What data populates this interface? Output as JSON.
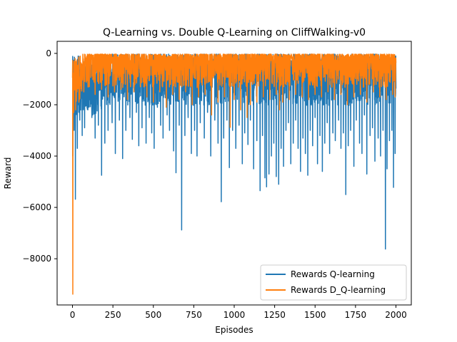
{
  "chart_data": {
    "type": "line",
    "title": "Q-Learning vs. Double Q-Learning on CliffWalking-v0",
    "xlabel": "Episodes",
    "ylabel": "Reward",
    "xlim": [
      -95,
      2095
    ],
    "ylim": [
      -9800,
      470
    ],
    "xticks": [
      0,
      250,
      500,
      750,
      1000,
      1250,
      1500,
      1750,
      2000
    ],
    "yticks": [
      0,
      -2000,
      -4000,
      -6000,
      -8000
    ],
    "grid": false,
    "legend": "lower-right",
    "series": [
      {
        "name": "Rewards Q-learning",
        "color": "#1f77b4",
        "spikes": [
          [
            2,
            -4000
          ],
          [
            10,
            -3000
          ],
          [
            18,
            -5680
          ],
          [
            30,
            -3700
          ],
          [
            45,
            -2600
          ],
          [
            60,
            -3200
          ],
          [
            75,
            -2900
          ],
          [
            95,
            -2200
          ],
          [
            120,
            -2500
          ],
          [
            140,
            -3300
          ],
          [
            160,
            -2800
          ],
          [
            180,
            -4750
          ],
          [
            200,
            -3500
          ],
          [
            220,
            -3000
          ],
          [
            245,
            -2700
          ],
          [
            265,
            -3900
          ],
          [
            290,
            -2600
          ],
          [
            310,
            -4100
          ],
          [
            330,
            -3000
          ],
          [
            355,
            -2500
          ],
          [
            370,
            -3350
          ],
          [
            395,
            -2300
          ],
          [
            410,
            -3600
          ],
          [
            430,
            -2900
          ],
          [
            455,
            -3500
          ],
          [
            475,
            -2500
          ],
          [
            490,
            -3100
          ],
          [
            505,
            -3700
          ],
          [
            525,
            -2100
          ],
          [
            545,
            -2800
          ],
          [
            560,
            -3300
          ],
          [
            585,
            -2400
          ],
          [
            600,
            -3000
          ],
          [
            625,
            -3800
          ],
          [
            640,
            -4650
          ],
          [
            660,
            -2800
          ],
          [
            675,
            -6880
          ],
          [
            695,
            -3200
          ],
          [
            715,
            -2500
          ],
          [
            735,
            -3900
          ],
          [
            755,
            -3000
          ],
          [
            770,
            -4000
          ],
          [
            790,
            -2700
          ],
          [
            815,
            -3300
          ],
          [
            835,
            -2300
          ],
          [
            855,
            -4000
          ],
          [
            880,
            -2600
          ],
          [
            900,
            -3500
          ],
          [
            920,
            -5780
          ],
          [
            935,
            -3300
          ],
          [
            955,
            -2600
          ],
          [
            970,
            -4450
          ],
          [
            990,
            -3000
          ],
          [
            1010,
            -3700
          ],
          [
            1030,
            -2800
          ],
          [
            1050,
            -4300
          ],
          [
            1065,
            -3100
          ],
          [
            1085,
            -3550
          ],
          [
            1100,
            -2600
          ],
          [
            1120,
            -4500
          ],
          [
            1140,
            -3400
          ],
          [
            1160,
            -5350
          ],
          [
            1175,
            -3200
          ],
          [
            1190,
            -4850
          ],
          [
            1200,
            -5200
          ],
          [
            1215,
            -4700
          ],
          [
            1230,
            -4000
          ],
          [
            1245,
            -3500
          ],
          [
            1260,
            -4800
          ],
          [
            1275,
            -5100
          ],
          [
            1290,
            -3700
          ],
          [
            1305,
            -4400
          ],
          [
            1320,
            -3000
          ],
          [
            1335,
            -2700
          ],
          [
            1350,
            -4300
          ],
          [
            1365,
            -3500
          ],
          [
            1380,
            -2600
          ],
          [
            1395,
            -3700
          ],
          [
            1410,
            -4600
          ],
          [
            1425,
            -3300
          ],
          [
            1440,
            -3900
          ],
          [
            1455,
            -4750
          ],
          [
            1470,
            -3000
          ],
          [
            1485,
            -3600
          ],
          [
            1500,
            -2500
          ],
          [
            1515,
            -4300
          ],
          [
            1530,
            -3200
          ],
          [
            1545,
            -4600
          ],
          [
            1560,
            -3500
          ],
          [
            1575,
            -2700
          ],
          [
            1590,
            -3900
          ],
          [
            1610,
            -3100
          ],
          [
            1625,
            -3400
          ],
          [
            1645,
            -2600
          ],
          [
            1660,
            -3700
          ],
          [
            1675,
            -3100
          ],
          [
            1690,
            -5500
          ],
          [
            1705,
            -3600
          ],
          [
            1720,
            -3000
          ],
          [
            1740,
            -4400
          ],
          [
            1755,
            -2600
          ],
          [
            1775,
            -3500
          ],
          [
            1790,
            -3900
          ],
          [
            1805,
            -2400
          ],
          [
            1820,
            -4700
          ],
          [
            1840,
            -3200
          ],
          [
            1855,
            -2900
          ],
          [
            1870,
            -4200
          ],
          [
            1890,
            -3300
          ],
          [
            1905,
            -4000
          ],
          [
            1920,
            -3000
          ],
          [
            1935,
            -7620
          ],
          [
            1945,
            -4500
          ],
          [
            1960,
            -3400
          ],
          [
            1975,
            -3000
          ],
          [
            1985,
            -5220
          ],
          [
            1995,
            -3900
          ]
        ]
      },
      {
        "name": "Rewards D_Q-learning",
        "color": "#ff7f0e",
        "spikes": [
          [
            2,
            -9380
          ],
          [
            8,
            -2300
          ],
          [
            20,
            -2200
          ],
          [
            40,
            -1900
          ],
          [
            70,
            -1500
          ],
          [
            100,
            -1300
          ],
          [
            140,
            -1600
          ],
          [
            180,
            -1400
          ],
          [
            220,
            -1700
          ],
          [
            260,
            -1500
          ],
          [
            300,
            -1400
          ],
          [
            340,
            -1800
          ],
          [
            380,
            -1500
          ],
          [
            420,
            -1300
          ],
          [
            460,
            -1700
          ],
          [
            500,
            -1900
          ],
          [
            540,
            -1500
          ],
          [
            580,
            -2100
          ],
          [
            620,
            -1600
          ],
          [
            660,
            -1800
          ],
          [
            700,
            -1500
          ],
          [
            740,
            -2000
          ],
          [
            780,
            -1700
          ],
          [
            820,
            -1600
          ],
          [
            860,
            -2400
          ],
          [
            900,
            -1900
          ],
          [
            940,
            -1700
          ],
          [
            975,
            -2880
          ],
          [
            1000,
            -1800
          ],
          [
            1040,
            -2200
          ],
          [
            1080,
            -2500
          ],
          [
            1100,
            -2000
          ],
          [
            1140,
            -1900
          ],
          [
            1180,
            -1700
          ],
          [
            1220,
            -1800
          ],
          [
            1260,
            -1600
          ],
          [
            1280,
            -2200
          ],
          [
            1300,
            -1900
          ],
          [
            1340,
            -1800
          ],
          [
            1380,
            -1600
          ],
          [
            1420,
            -1700
          ],
          [
            1460,
            -1800
          ],
          [
            1500,
            -1600
          ],
          [
            1540,
            -1700
          ],
          [
            1580,
            -1500
          ],
          [
            1620,
            -1800
          ],
          [
            1660,
            -1600
          ],
          [
            1700,
            -2000
          ],
          [
            1740,
            -1700
          ],
          [
            1780,
            -1600
          ],
          [
            1820,
            -1900
          ],
          [
            1860,
            -1500
          ],
          [
            1900,
            -1700
          ],
          [
            1940,
            -1800
          ],
          [
            1980,
            -1600
          ],
          [
            1995,
            -1700
          ]
        ]
      }
    ]
  }
}
